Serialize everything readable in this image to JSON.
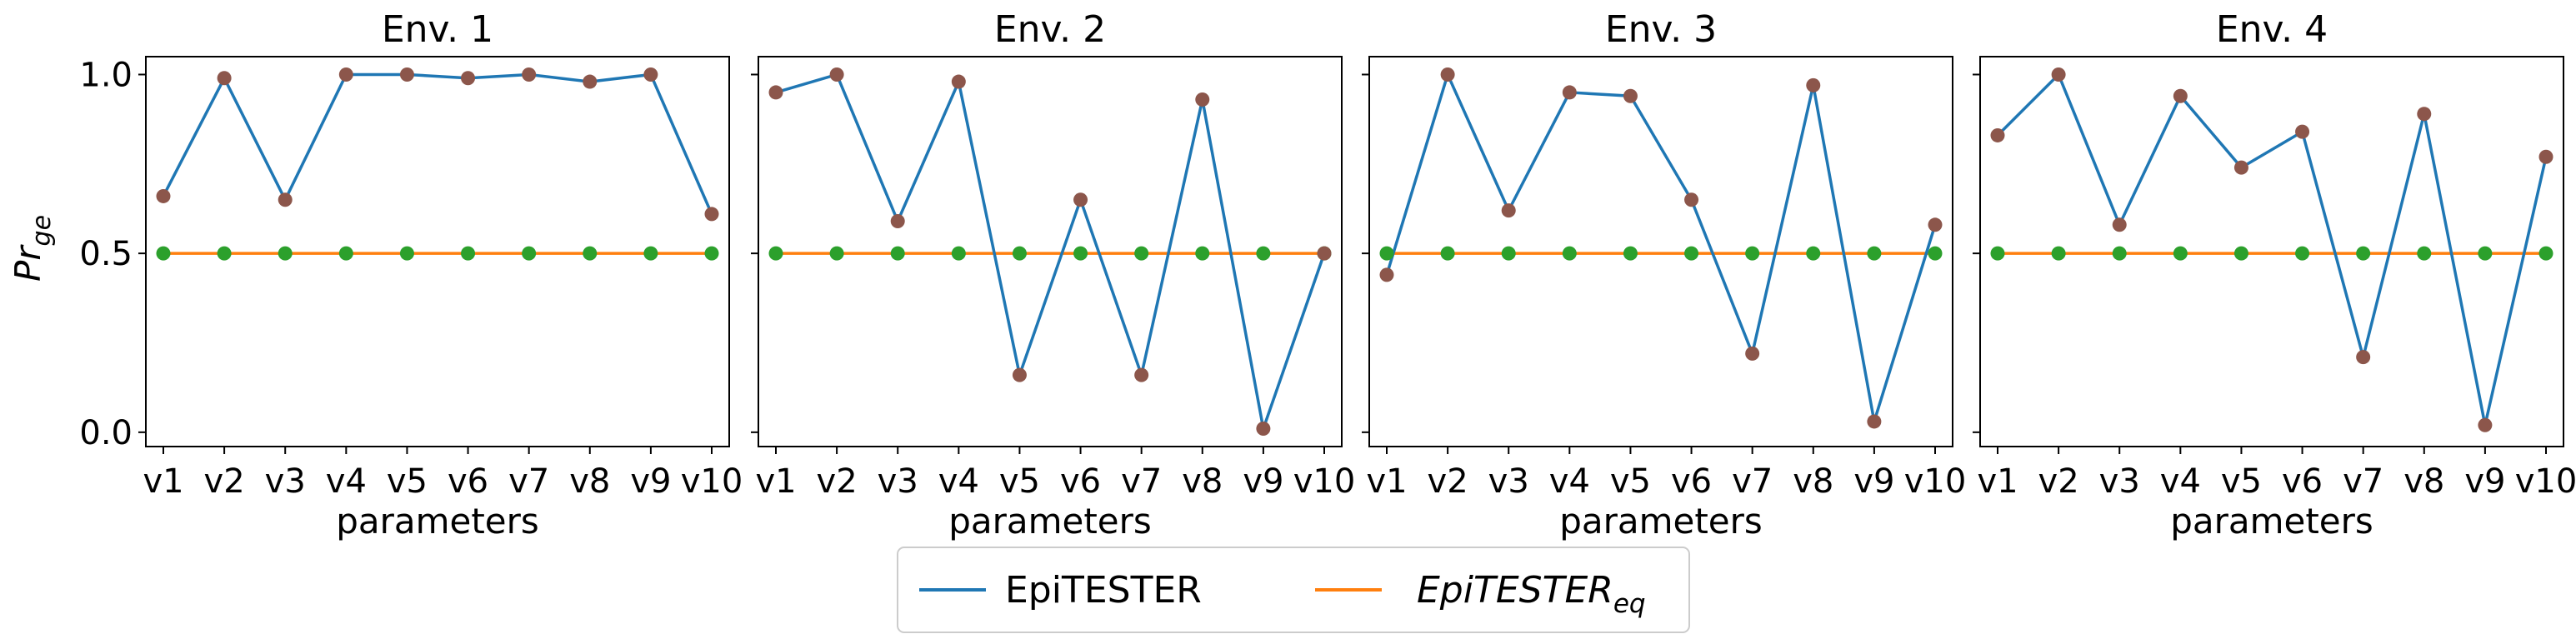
{
  "chart_data": [
    {
      "type": "line",
      "title": "Env. 1",
      "xlabel": "parameters",
      "ylabel": "Pr_ge",
      "categories": [
        "v1",
        "v2",
        "v3",
        "v4",
        "v5",
        "v6",
        "v7",
        "v8",
        "v9",
        "v10"
      ],
      "yticks": [
        "0.0",
        "0.5",
        "1.0"
      ],
      "ylim": [
        -0.04,
        1.05
      ],
      "series": [
        {
          "name": "EpiTESTER",
          "color": "#1f77b4",
          "marker_color": "#8c564b",
          "values": [
            0.66,
            0.99,
            0.65,
            1.0,
            1.0,
            0.99,
            1.0,
            0.98,
            1.0,
            0.61
          ]
        },
        {
          "name": "EpiTESTER_eq",
          "color": "#ff7f0e",
          "marker_color": "#2ca02c",
          "values": [
            0.5,
            0.5,
            0.5,
            0.5,
            0.5,
            0.5,
            0.5,
            0.5,
            0.5,
            0.5
          ]
        }
      ]
    },
    {
      "type": "line",
      "title": "Env. 2",
      "xlabel": "parameters",
      "categories": [
        "v1",
        "v2",
        "v3",
        "v4",
        "v5",
        "v6",
        "v7",
        "v8",
        "v9",
        "v10"
      ],
      "ylim": [
        -0.04,
        1.05
      ],
      "series": [
        {
          "name": "EpiTESTER",
          "color": "#1f77b4",
          "marker_color": "#8c564b",
          "values": [
            0.95,
            1.0,
            0.59,
            0.98,
            0.16,
            0.65,
            0.16,
            0.93,
            0.01,
            0.5
          ]
        },
        {
          "name": "EpiTESTER_eq",
          "color": "#ff7f0e",
          "marker_color": "#2ca02c",
          "values": [
            0.5,
            0.5,
            0.5,
            0.5,
            0.5,
            0.5,
            0.5,
            0.5,
            0.5,
            0.5
          ]
        }
      ]
    },
    {
      "type": "line",
      "title": "Env. 3",
      "xlabel": "parameters",
      "categories": [
        "v1",
        "v2",
        "v3",
        "v4",
        "v5",
        "v6",
        "v7",
        "v8",
        "v9",
        "v10"
      ],
      "ylim": [
        -0.04,
        1.05
      ],
      "series": [
        {
          "name": "EpiTESTER",
          "color": "#1f77b4",
          "marker_color": "#8c564b",
          "values": [
            0.44,
            1.0,
            0.62,
            0.95,
            0.94,
            0.65,
            0.22,
            0.97,
            0.03,
            0.58
          ]
        },
        {
          "name": "EpiTESTER_eq",
          "color": "#ff7f0e",
          "marker_color": "#2ca02c",
          "values": [
            0.5,
            0.5,
            0.5,
            0.5,
            0.5,
            0.5,
            0.5,
            0.5,
            0.5,
            0.5
          ]
        }
      ]
    },
    {
      "type": "line",
      "title": "Env. 4",
      "xlabel": "parameters",
      "categories": [
        "v1",
        "v2",
        "v3",
        "v4",
        "v5",
        "v6",
        "v7",
        "v8",
        "v9",
        "v10"
      ],
      "ylim": [
        -0.04,
        1.05
      ],
      "series": [
        {
          "name": "EpiTESTER",
          "color": "#1f77b4",
          "marker_color": "#8c564b",
          "values": [
            0.83,
            1.0,
            0.58,
            0.94,
            0.74,
            0.84,
            0.21,
            0.89,
            0.02,
            0.77
          ]
        },
        {
          "name": "EpiTESTER_eq",
          "color": "#ff7f0e",
          "marker_color": "#2ca02c",
          "values": [
            0.5,
            0.5,
            0.5,
            0.5,
            0.5,
            0.5,
            0.5,
            0.5,
            0.5,
            0.5
          ]
        }
      ]
    }
  ],
  "legend": {
    "placement": "bottom-center",
    "entries": [
      {
        "label": "EpiTESTER",
        "color": "#1f77b4"
      },
      {
        "label_base": "EpiTESTER",
        "label_sub": "eq",
        "color": "#ff7f0e"
      }
    ]
  },
  "ylabel": {
    "base": "Pr",
    "sub": "ge"
  }
}
